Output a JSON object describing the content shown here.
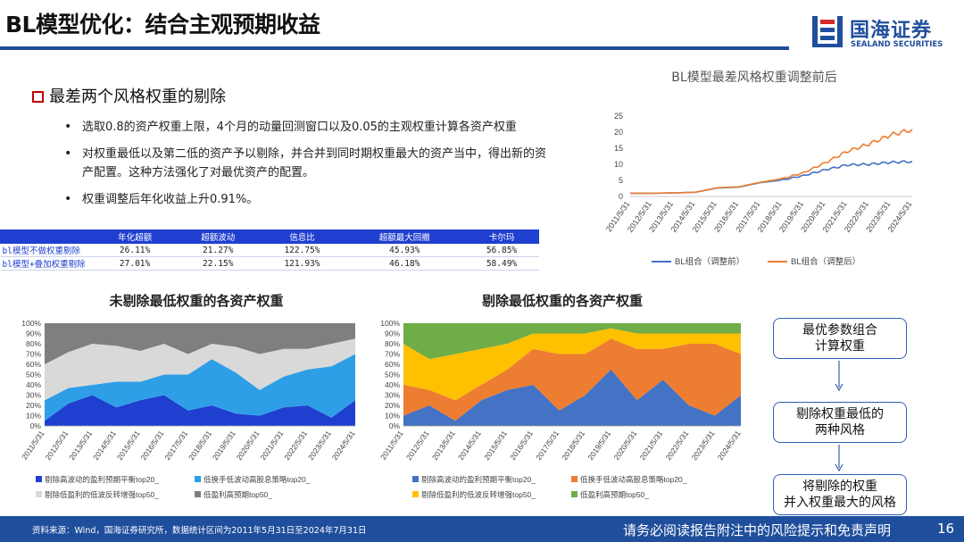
{
  "header": {
    "title": "BL模型优化：结合主观预期收益",
    "logo_cn": "国海证券",
    "logo_en": "SEALAND SECURITIES"
  },
  "section": {
    "heading": "最差两个风格权重的剔除",
    "bullets": [
      "选取0.8的资产权重上限，4个月的动量回测窗口以及0.05的主观权重计算各资产权重",
      "对权重最低以及第二低的资产予以剔除，并合并到同时期权重最大的资产当中，得出新的资产配置。这种方法强化了对最优资产的配置。",
      "权重调整后年化收益上升0.91%。"
    ]
  },
  "table": {
    "headers": [
      "",
      "年化超额",
      "超额波动",
      "信息比",
      "超额最大回撤",
      "卡尔玛"
    ],
    "rows": [
      [
        "bl模型不做权重剔除",
        "26.11%",
        "21.27%",
        "122.75%",
        "45.93%",
        "56.85%"
      ],
      [
        "bl模型+叠加权重剔除",
        "27.01%",
        "22.15%",
        "121.93%",
        "46.18%",
        "58.49%"
      ]
    ]
  },
  "flow": {
    "box1": "最优参数组合\n计算权重",
    "box2": "剔除权重最低的\n两种风格",
    "box3": "将剔除的权重\n并入权重最大的风格"
  },
  "footer": {
    "source": "资料来源：Wind，国海证券研究所，数据统计区间为2011年5月31日至2024年7月31日",
    "disclaimer": "请务必阅读报告附注中的风险提示和免责声明",
    "page": "16"
  },
  "chart_data": [
    {
      "type": "line",
      "title": "BL模型最差风格权重调整前后",
      "x_ticks": [
        "2011/5/31",
        "2012/5/31",
        "2013/5/31",
        "2014/5/31",
        "2015/5/31",
        "2016/5/31",
        "2017/5/31",
        "2018/5/31",
        "2019/5/31",
        "2020/5/31",
        "2021/5/31",
        "2022/5/31",
        "2023/5/31",
        "2024/5/31"
      ],
      "y_ticks": [
        "0",
        "5",
        "10",
        "15",
        "20",
        "25"
      ],
      "ylim": [
        0,
        25
      ],
      "series": [
        {
          "name": "BL组合（调整前）",
          "color": "#4472c4",
          "values": [
            1.0,
            1.0,
            1.1,
            1.3,
            2.6,
            2.9,
            4.3,
            5.1,
            6.5,
            8.3,
            9.8,
            10.0,
            10.6,
            10.9
          ]
        },
        {
          "name": "BL组合（调整后）",
          "color": "#ed7d31",
          "values": [
            1.0,
            1.0,
            1.1,
            1.3,
            2.7,
            3.0,
            4.4,
            5.5,
            7.4,
            10.5,
            14.0,
            16.3,
            19.1,
            20.8
          ]
        }
      ],
      "legend": "bottom"
    },
    {
      "type": "area",
      "title": "未剔除最低权重的各资产权重",
      "x_ticks": [
        "2011/5/31",
        "2012/5/31",
        "2013/5/31",
        "2014/5/31",
        "2015/5/31",
        "2016/5/31",
        "2017/5/31",
        "2018/5/31",
        "2019/5/31",
        "2020/5/31",
        "2021/5/31",
        "2022/5/31",
        "2023/5/31",
        "2024/5/31"
      ],
      "y_ticks": [
        "0%",
        "10%",
        "20%",
        "30%",
        "40%",
        "50%",
        "60%",
        "70%",
        "80%",
        "90%",
        "100%"
      ],
      "ylim": [
        0,
        100
      ],
      "series": [
        {
          "name": "剔除高波动的盈利预期平衡top20_",
          "color": "#1f3fd0",
          "values": [
            5,
            22,
            30,
            18,
            25,
            30,
            15,
            20,
            12,
            10,
            18,
            20,
            8,
            25
          ]
        },
        {
          "name": "低换手低波动高股息策略top20_",
          "color": "#2e9fe6",
          "values": [
            20,
            15,
            10,
            25,
            18,
            20,
            35,
            45,
            40,
            25,
            30,
            35,
            50,
            45
          ]
        },
        {
          "name": "剔除低盈利的低波反转增强top50_",
          "color": "#d9d9d9",
          "values": [
            35,
            35,
            40,
            35,
            30,
            30,
            20,
            15,
            25,
            35,
            27,
            20,
            22,
            15
          ]
        },
        {
          "name": "低盈利高预期top50_",
          "color": "#7f7f7f",
          "values": [
            40,
            28,
            20,
            22,
            27,
            20,
            30,
            20,
            23,
            30,
            25,
            25,
            20,
            15
          ]
        }
      ],
      "legend": "bottom"
    },
    {
      "type": "area",
      "title": "剔除最低权重的各资产权重",
      "x_ticks": [
        "2011/5/31",
        "2012/5/31",
        "2013/5/31",
        "2014/5/31",
        "2015/5/31",
        "2016/5/31",
        "2017/5/31",
        "2018/5/31",
        "2019/5/31",
        "2020/5/31",
        "2021/5/31",
        "2022/5/31",
        "2023/5/31",
        "2024/5/31"
      ],
      "y_ticks": [
        "0%",
        "10%",
        "20%",
        "30%",
        "40%",
        "50%",
        "60%",
        "70%",
        "80%",
        "90%",
        "100%"
      ],
      "ylim": [
        0,
        100
      ],
      "series": [
        {
          "name": "剔除高波动的盈利预期平衡top20_",
          "color": "#4472c4",
          "values": [
            10,
            20,
            5,
            25,
            35,
            40,
            15,
            30,
            55,
            25,
            45,
            20,
            10,
            30
          ]
        },
        {
          "name": "低换手低波动高股息策略top20_",
          "color": "#ed7d31",
          "values": [
            30,
            15,
            20,
            15,
            20,
            35,
            55,
            40,
            30,
            50,
            30,
            60,
            70,
            40
          ]
        },
        {
          "name": "剔除低盈利的低波反转增强top50_",
          "color": "#ffc000",
          "values": [
            40,
            30,
            45,
            35,
            25,
            15,
            20,
            20,
            10,
            15,
            15,
            10,
            10,
            20
          ]
        },
        {
          "name": "低盈利高预期top50_",
          "color": "#70ad47",
          "values": [
            20,
            35,
            30,
            25,
            20,
            10,
            10,
            10,
            5,
            10,
            10,
            10,
            10,
            10
          ]
        }
      ],
      "legend": "bottom"
    }
  ]
}
